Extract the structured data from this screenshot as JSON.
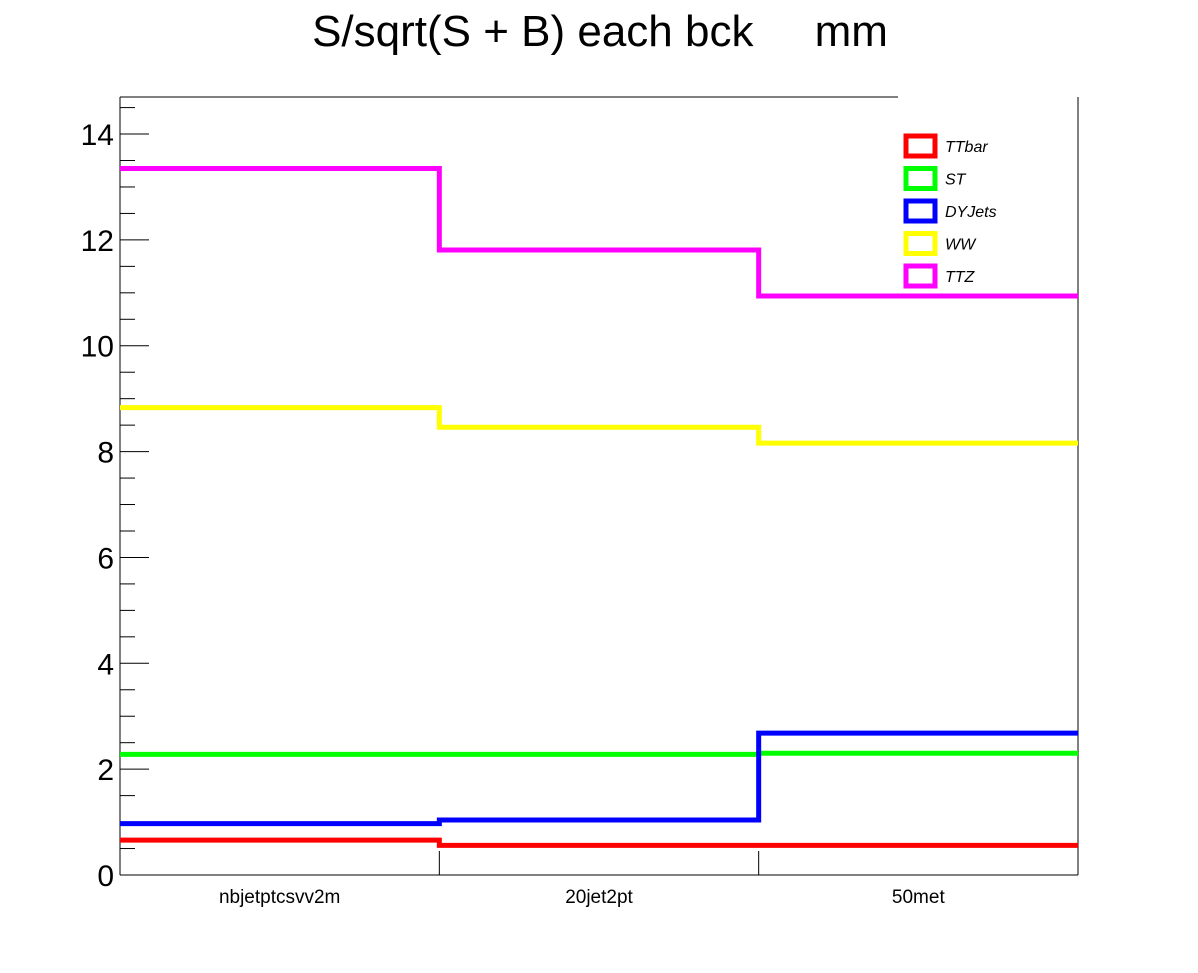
{
  "chart_data": {
    "type": "line",
    "style": "step",
    "title": "S/sqrt(S + B) each bck     mm",
    "xlabel": "",
    "ylabel": "",
    "categories": [
      "nbjetptcsvv2m",
      "20jet2pt",
      "50met"
    ],
    "ylim": [
      0,
      14.7
    ],
    "yticks": [
      0,
      2,
      4,
      6,
      8,
      10,
      12,
      14
    ],
    "grid": false,
    "legend_position": "top-right",
    "series": [
      {
        "name": "TTbar",
        "color": "#ff0000",
        "values": [
          0.66,
          0.56,
          0.56
        ]
      },
      {
        "name": "ST",
        "color": "#00ff00",
        "values": [
          2.28,
          2.28,
          2.3
        ]
      },
      {
        "name": "DYJets",
        "color": "#0000ff",
        "values": [
          0.97,
          1.04,
          2.68
        ]
      },
      {
        "name": "WW",
        "color": "#ffff00",
        "values": [
          8.83,
          8.46,
          8.16
        ]
      },
      {
        "name": "TTZ",
        "color": "#ff00ff",
        "values": [
          13.35,
          11.81,
          10.94
        ]
      }
    ]
  }
}
